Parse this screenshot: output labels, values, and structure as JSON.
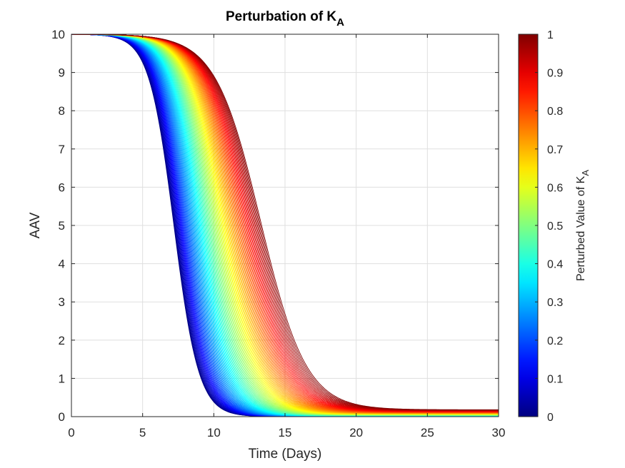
{
  "chart_data": {
    "type": "line",
    "title": "Perturbation of K",
    "title_subscript": "A",
    "xlabel": "Time (Days)",
    "ylabel": "AAV",
    "xlim": [
      0,
      30
    ],
    "ylim": [
      0,
      10
    ],
    "x_ticks": [
      "0",
      "5",
      "10",
      "15",
      "20",
      "25",
      "30"
    ],
    "y_ticks": [
      "0",
      "1",
      "2",
      "3",
      "4",
      "5",
      "6",
      "7",
      "8",
      "9",
      "10"
    ],
    "grid": true,
    "colormap": "jet",
    "colorbar": {
      "label": "Perturbed Value of K",
      "label_subscript": "A",
      "range": [
        0,
        1
      ],
      "ticks": [
        "0",
        "0.1",
        "0.2",
        "0.3",
        "0.4",
        "0.5",
        "0.6",
        "0.7",
        "0.8",
        "0.9",
        "1"
      ]
    },
    "series_family": {
      "parameter": "K_A",
      "parameter_range": [
        0,
        1
      ],
      "count": 101,
      "initial_value": 10,
      "half_drop_time_at_min": 7.2,
      "half_drop_time_at_max": 13.3,
      "final_value_at_min": 0.0,
      "final_value_at_max": 0.18
    }
  }
}
